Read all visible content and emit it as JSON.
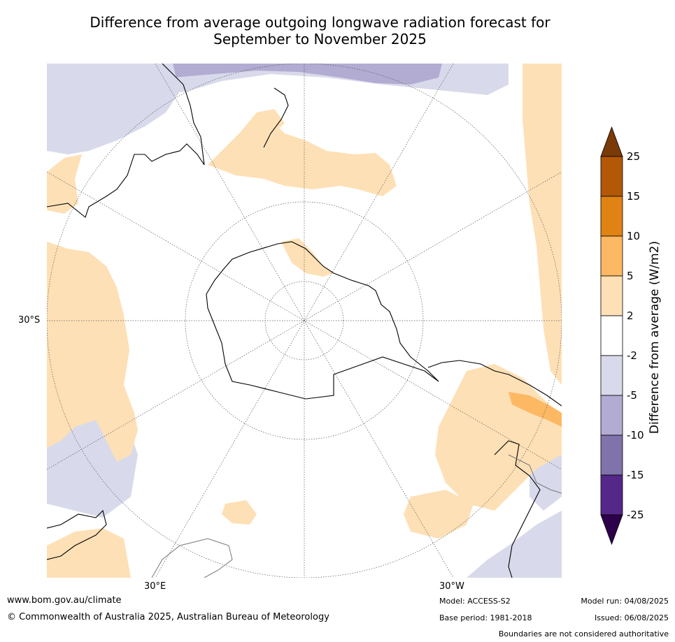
{
  "title": {
    "line1": "Difference from average outgoing longwave radiation forecast for",
    "line2": "September to November 2025"
  },
  "map": {
    "projection": "south-polar-stereographic",
    "lat_label": "30°S",
    "lon_labels": [
      "30°E",
      "30°W"
    ],
    "background_color": "#ffffff",
    "coastline_color": "#000000",
    "boundary_color": "#777777"
  },
  "legend": {
    "title": "Difference from average (W/m2)",
    "tick_labels": [
      "25",
      "15",
      "10",
      "5",
      "2",
      "-2",
      "-5",
      "-10",
      "-15",
      "-25"
    ],
    "bins": [
      {
        "range": "> 25",
        "color": "#7a3b09"
      },
      {
        "range": "15 to 25",
        "color": "#b35806"
      },
      {
        "range": "10 to 15",
        "color": "#e08214"
      },
      {
        "range": "5 to 10",
        "color": "#fdb863"
      },
      {
        "range": "2 to 5",
        "color": "#fee0b6"
      },
      {
        "range": "-2 to 2",
        "color": "#ffffff"
      },
      {
        "range": "-5 to -2",
        "color": "#d8daeb"
      },
      {
        "range": "-10 to -5",
        "color": "#b2abd2"
      },
      {
        "range": "-15 to -10",
        "color": "#8073ac"
      },
      {
        "range": "-25 to -15",
        "color": "#542788"
      },
      {
        "range": "< -25",
        "color": "#2d004b"
      }
    ]
  },
  "footer": {
    "website": "www.bom.gov.au/climate",
    "copyright": "© Commonwealth of Australia 2025, Australian Bureau of Meteorology",
    "model": "Model: ACCESS-S2",
    "base_period": "Base period: 1981-2018",
    "model_run": "Model run: 04/08/2025",
    "issued": "Issued: 06/08/2025",
    "disclaimer": "Boundaries are not considered authoritative"
  }
}
